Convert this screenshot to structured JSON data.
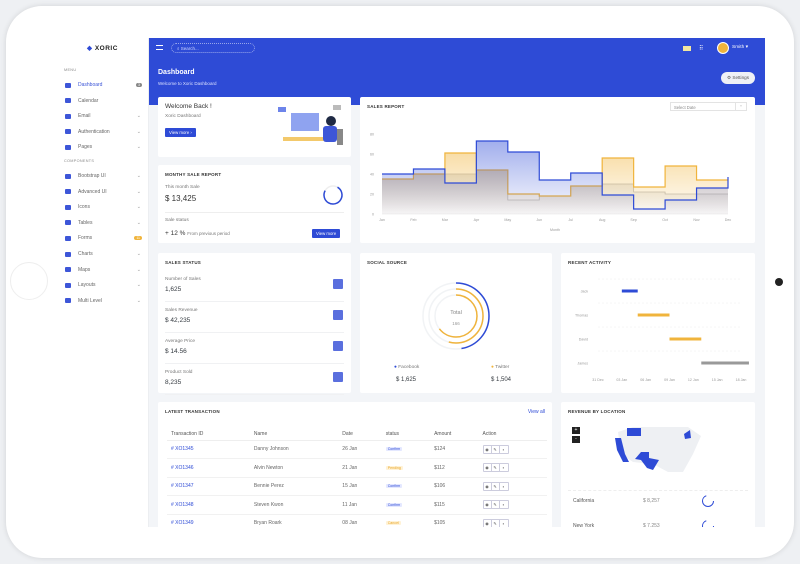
{
  "brand": "XORIC",
  "sidebar": {
    "menu_label": "MENU",
    "components_label": "COMPONENTS",
    "items": [
      {
        "label": "Dashboard",
        "badge": "3",
        "active": true
      },
      {
        "label": "Calendar"
      },
      {
        "label": "Email",
        "chevron": true
      },
      {
        "label": "Authentication",
        "chevron": true
      },
      {
        "label": "Pages",
        "chevron": true
      }
    ],
    "components": [
      {
        "label": "Bootstrap UI",
        "chevron": true
      },
      {
        "label": "Advanced UI",
        "chevron": true
      },
      {
        "label": "Icons",
        "chevron": true
      },
      {
        "label": "Tables",
        "chevron": true
      },
      {
        "label": "Forms",
        "badge": "11"
      },
      {
        "label": "Charts",
        "chevron": true
      },
      {
        "label": "Maps",
        "chevron": true
      },
      {
        "label": "Layouts",
        "chevron": true
      },
      {
        "label": "Multi Level",
        "chevron": true
      }
    ]
  },
  "topbar": {
    "search_placeholder": "Search...",
    "user": "Smith",
    "page_title": "Dashboard",
    "page_subtitle": "Welcome to Xoric Dashboard",
    "settings_label": "Settings"
  },
  "welcome": {
    "title": "Welcome Back !",
    "subtitle": "Xoric Dashboard",
    "button": "View more"
  },
  "monthly": {
    "title": "MONTHY SALE REPORT",
    "this_month_label": "This month Sale",
    "this_month_value": "$ 13,425",
    "status_label": "Sale status",
    "change": "+ 12 %",
    "change_note": "From previous period",
    "button": "View more"
  },
  "sales_report": {
    "title": "SALES REPORT",
    "date_placeholder": "Select Date"
  },
  "chart_data": {
    "type": "line",
    "step": true,
    "title": "",
    "xlabel": "Month",
    "ylabel": "",
    "ylim": [
      0,
      80
    ],
    "yticks": [
      0,
      20,
      40,
      60,
      80
    ],
    "categories": [
      "Jan",
      "Feb",
      "Mar",
      "Apr",
      "May",
      "Jun",
      "Jul",
      "Aug",
      "Sep",
      "Oct",
      "Nov",
      "Dec"
    ],
    "series": [
      {
        "color": "#bdbdbd",
        "values": [
          35,
          40,
          40,
          44,
          14,
          18,
          28,
          30,
          22,
          20,
          20,
          20
        ]
      },
      {
        "color": "#f0b43c",
        "values": [
          35,
          40,
          61,
          44,
          20,
          18,
          28,
          56,
          27,
          48,
          34,
          34
        ]
      },
      {
        "color": "#2e4bd6",
        "values": [
          40,
          45,
          31,
          73,
          62,
          34,
          41,
          19,
          5,
          14,
          26,
          37
        ]
      }
    ]
  },
  "sales_status": {
    "title": "SALES STATUS",
    "items": [
      {
        "label": "Number of Sales",
        "value": "1,625"
      },
      {
        "label": "Sales Revenue",
        "value": "$ 42,235"
      },
      {
        "label": "Average Price",
        "value": "$ 14.56"
      },
      {
        "label": "Product Sold",
        "value": "8,235"
      }
    ]
  },
  "social": {
    "title": "SOCIAL SOURCE",
    "total_label": "Total",
    "total_value": "166",
    "facebook": {
      "label": "Facebook",
      "value": "$ 1,625",
      "color": "#2e4bd6"
    },
    "twitter": {
      "label": "Twitter",
      "value": "$ 1,504",
      "color": "#f0b43c"
    }
  },
  "activity": {
    "title": "RECENT ACTIVITY",
    "xticks": [
      "31 Dec",
      "03 Jan",
      "06 Jan",
      "09 Jan",
      "12 Jan",
      "15 Jan",
      "18 Jan"
    ],
    "rows": [
      {
        "name": "Jack",
        "start": 2,
        "end": 4,
        "color": "#2e4bd6"
      },
      {
        "name": "Thomas",
        "start": 4,
        "end": 8,
        "color": "#f0b43c"
      },
      {
        "name": "David",
        "start": 8,
        "end": 12,
        "color": "#f0b43c"
      },
      {
        "name": "James",
        "start": 12,
        "end": 18,
        "color": "#999999"
      }
    ]
  },
  "transactions": {
    "title": "LATEST TRANSACTION",
    "view_all": "View all",
    "headers": [
      "Transaction ID",
      "Name",
      "Date",
      "status",
      "Amount",
      "Action"
    ],
    "rows": [
      {
        "id": "# XO1345",
        "name": "Danny Johnson",
        "date": "26 Jan",
        "status": "Confirm",
        "amount": "$124"
      },
      {
        "id": "# XO1346",
        "name": "Alvin Newton",
        "date": "21 Jan",
        "status": "Pending",
        "amount": "$112"
      },
      {
        "id": "# XO1347",
        "name": "Bennie Perez",
        "date": "15 Jan",
        "status": "Confirm",
        "amount": "$106"
      },
      {
        "id": "# XO1348",
        "name": "Steven Kwon",
        "date": "11 Jan",
        "status": "Confirm",
        "amount": "$115"
      },
      {
        "id": "# XO1349",
        "name": "Bryan Roark",
        "date": "08 Jan",
        "status": "Cancel",
        "amount": "$105"
      }
    ]
  },
  "location": {
    "title": "REVENUE BY LOCATION",
    "zoom_in": "+",
    "zoom_out": "-",
    "rows": [
      {
        "name": "California",
        "value": "$ 8,257"
      },
      {
        "name": "New York",
        "value": "$ 7,253"
      }
    ]
  }
}
